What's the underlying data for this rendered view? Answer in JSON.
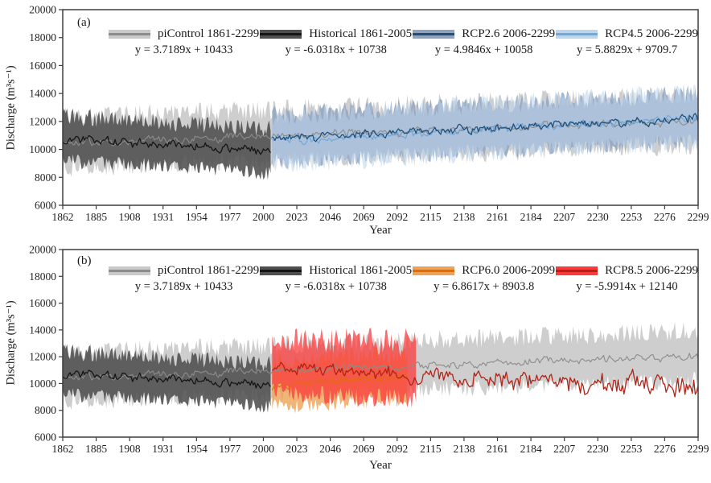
{
  "figure": {
    "x_axis_label": "Year",
    "y_axis_label": "Discharge (m³s⁻¹)"
  },
  "chart_data": [
    {
      "panel": "(a)",
      "type": "area",
      "description": "Annual discharge time series: ensemble spread (shaded band) and mean (line) per scenario; legend shows linear trend equations",
      "xlabel": "Year",
      "ylabel": "Discharge (m³s⁻¹)",
      "x_min": 1862,
      "x_max": 2299,
      "y_min": 6000,
      "y_max": 20000,
      "y_step": 2000,
      "trend_x0": 1861,
      "legend_position": "top inside",
      "x_ticks": [
        1862,
        1885,
        1908,
        1931,
        1954,
        1977,
        2000,
        2023,
        2046,
        2069,
        2092,
        2115,
        2138,
        2161,
        2184,
        2207,
        2230,
        2253,
        2276,
        2299
      ],
      "series": [
        {
          "name": "piControl 1861-2299",
          "equation": "y = 3.7189x + 10433",
          "slope": 3.7189,
          "intercept": 10433,
          "start": 1862,
          "end": 2299,
          "band_color": "#c9c9c9",
          "band_opacity": 0.9,
          "line_color": "#8c8c8c",
          "line_width": 1.1,
          "line_amp": 600,
          "band_base": 1150,
          "band_extra": 1450,
          "seed": 7
        },
        {
          "name": "Historical 1861-2005",
          "equation": "y = -6.0318x + 10738",
          "slope": -6.0318,
          "intercept": 10738,
          "start": 1862,
          "end": 2005,
          "band_color": "#4f4f4f",
          "band_opacity": 0.88,
          "line_color": "#141414",
          "line_width": 1.25,
          "line_amp": 650,
          "band_base": 1000,
          "band_extra": 1250,
          "seed": 13
        },
        {
          "name": "RCP2.6 2006-2299",
          "equation": "y = 4.9846x + 10058",
          "slope": 4.9846,
          "intercept": 10058,
          "start": 2006,
          "end": 2299,
          "band_color": "#8fa3bf",
          "band_opacity": 0.8,
          "line_color": "#1f4e79",
          "line_width": 1.25,
          "line_amp": 620,
          "band_base": 1050,
          "band_extra": 1350,
          "seed": 29,
          "line_z": 2
        },
        {
          "name": "RCP4.5 2006-2299",
          "equation": "y = 5.8829x + 9709.7",
          "slope": 5.8829,
          "intercept": 9709.7,
          "start": 2006,
          "end": 2299,
          "band_color": "#bcd6ee",
          "band_opacity": 0.55,
          "line_color": "#6fa8dc",
          "line_width": 1.2,
          "line_amp": 600,
          "band_base": 1100,
          "band_extra": 1400,
          "seed": 41,
          "line_z": 1
        }
      ]
    },
    {
      "panel": "(b)",
      "type": "area",
      "description": "Annual discharge time series: ensemble spread (shaded band) and mean (line) per scenario; legend shows linear trend equations",
      "xlabel": "Year",
      "ylabel": "Discharge (m³s⁻¹)",
      "x_min": 1862,
      "x_max": 2299,
      "y_min": 6000,
      "y_max": 20000,
      "y_step": 2000,
      "trend_x0": 1861,
      "legend_position": "top inside",
      "x_ticks": [
        1862,
        1885,
        1908,
        1931,
        1954,
        1977,
        2000,
        2023,
        2046,
        2069,
        2092,
        2115,
        2138,
        2161,
        2184,
        2207,
        2230,
        2253,
        2276,
        2299
      ],
      "series": [
        {
          "name": "piControl 1861-2299",
          "equation": "y = 3.7189x + 10433",
          "slope": 3.7189,
          "intercept": 10433,
          "start": 1862,
          "end": 2299,
          "band_color": "#c9c9c9",
          "band_opacity": 0.9,
          "line_color": "#8c8c8c",
          "line_width": 1.1,
          "line_amp": 600,
          "band_base": 1150,
          "band_extra": 1450,
          "seed": 7
        },
        {
          "name": "Historical 1861-2005",
          "equation": "y = -6.0318x + 10738",
          "slope": -6.0318,
          "intercept": 10738,
          "start": 1862,
          "end": 2005,
          "band_color": "#4f4f4f",
          "band_opacity": 0.88,
          "line_color": "#141414",
          "line_width": 1.25,
          "line_amp": 650,
          "band_base": 1000,
          "band_extra": 1250,
          "seed": 13
        },
        {
          "name": "RCP6.0 2006-2099",
          "equation": "y = 6.8617x + 8903.8",
          "slope": 6.8617,
          "intercept": 8903.8,
          "start": 2006,
          "end": 2099,
          "band_color": "#eda355",
          "band_opacity": 0.8,
          "line_color": "#e36c09",
          "line_width": 1.25,
          "line_amp": 600,
          "band_base": 1050,
          "band_extra": 1350,
          "seed": 53
        },
        {
          "name": "RCP8.5 2006-2299",
          "equation": "y = -5.9914x + 12140",
          "slope": -5.9914,
          "intercept": 12140,
          "start": 2006,
          "end": 2299,
          "band_end": 2105,
          "band_color": "#fb3b3b",
          "band_opacity": 0.75,
          "line_color": "#b02418",
          "line_width": 1.3,
          "line_amp": 750,
          "amp_growth": 1100,
          "band_base": 1200,
          "band_extra": 1600,
          "band_growth": 2400,
          "seed": 67
        }
      ]
    }
  ]
}
